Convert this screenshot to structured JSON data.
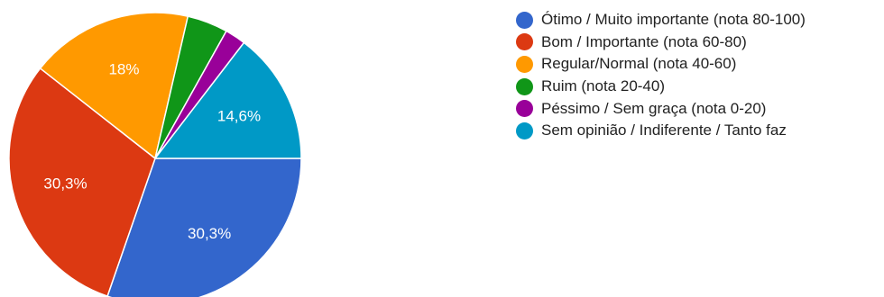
{
  "chart_data": {
    "type": "pie",
    "title": "",
    "slices": [
      {
        "label": "Ótimo / Muito importante (nota 80-100)",
        "value": 30.3,
        "value_label": "30,3%",
        "color": "#3366cc"
      },
      {
        "label": "Bom / Importante (nota 60-80)",
        "value": 30.3,
        "value_label": "30,3%",
        "color": "#dc3912"
      },
      {
        "label": "Regular/Normal (nota 40-60)",
        "value": 18.0,
        "value_label": "18%",
        "color": "#ff9900"
      },
      {
        "label": "Ruim (nota 20-40)",
        "value": 4.5,
        "value_label": "",
        "color": "#109618"
      },
      {
        "label": "Péssimo / Sem graça (nota 0-20)",
        "value": 2.3,
        "value_label": "",
        "color": "#990099"
      },
      {
        "label": "Sem opinião / Indiferente / Tanto faz",
        "value": 14.6,
        "value_label": "14,6%",
        "color": "#0099c6"
      }
    ],
    "legend_position": "right",
    "start_direction": "east, clockwise"
  }
}
